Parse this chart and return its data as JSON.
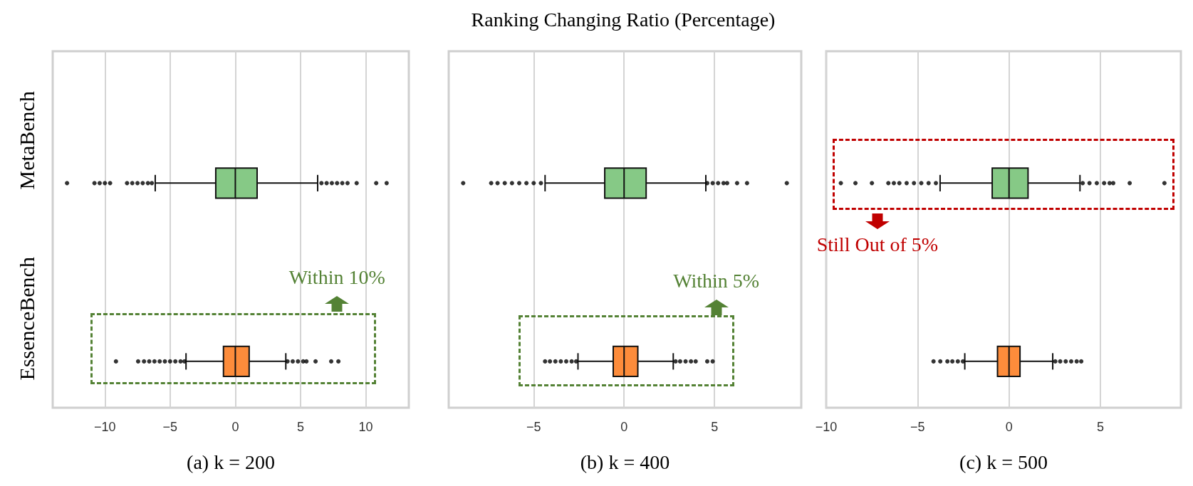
{
  "chart_data": [
    {
      "type": "box",
      "orientation": "horizontal",
      "xlabel": "(a) k = 200",
      "categories": [
        "MetaBench",
        "EssenceBench"
      ],
      "xlim": [
        -14,
        13.3
      ],
      "xticks": [
        -10,
        -5,
        0,
        5,
        10
      ],
      "grid": "x",
      "colors": [
        "#86c986",
        "#fd8c3b"
      ],
      "boxes": [
        {
          "low": -6.14,
          "q1": -1.5,
          "median": 0,
          "q3": 1.67,
          "high": 6.31,
          "outliers": [
            -12.9,
            -10.8,
            -10.4,
            -10.0,
            -9.6,
            -8.3,
            -7.9,
            -7.5,
            -7.1,
            -6.7,
            -6.4,
            6.6,
            7.0,
            7.4,
            7.8,
            8.2,
            8.6,
            9.3,
            10.8,
            11.6
          ]
        },
        {
          "low": -3.78,
          "q1": -0.91,
          "median": 0,
          "q3": 1.06,
          "high": 3.87,
          "outliers": [
            -9.15,
            -7.45,
            -7.0,
            -6.6,
            -6.2,
            -5.8,
            -5.4,
            -5.0,
            -4.6,
            -4.2,
            -3.9,
            4.0,
            4.4,
            4.8,
            5.2,
            5.45,
            6.15,
            7.35,
            7.9
          ]
        }
      ],
      "annotations": [
        "Within 10%"
      ]
    },
    {
      "type": "box",
      "orientation": "horizontal",
      "title": "Ranking Changing Ratio (Percentage)",
      "xlabel": "(b) k = 400",
      "xlim": [
        -9.7,
        9.8
      ],
      "xticks": [
        -5,
        0,
        5
      ],
      "grid": "x",
      "colors": [
        "#86c986",
        "#fd8c3b"
      ],
      "boxes": [
        {
          "low": -4.37,
          "q1": -1.07,
          "median": 0,
          "q3": 1.22,
          "high": 4.52,
          "outliers": [
            -8.9,
            -7.35,
            -7.0,
            -6.6,
            -6.2,
            -5.8,
            -5.4,
            -5.0,
            -4.6,
            4.6,
            4.9,
            5.2,
            5.5,
            5.7,
            6.25,
            6.8,
            9.0
          ]
        },
        {
          "low": -2.55,
          "q1": -0.6,
          "median": 0,
          "q3": 0.76,
          "high": 2.72,
          "outliers": [
            -4.37,
            -4.1,
            -3.8,
            -3.5,
            -3.2,
            -2.9,
            -2.65,
            2.85,
            3.1,
            3.4,
            3.7,
            3.96,
            4.6,
            4.9
          ]
        }
      ],
      "annotations": [
        "Within 5%"
      ]
    },
    {
      "type": "box",
      "orientation": "horizontal",
      "xlabel": "(c) k = 500",
      "xlim": [
        -10,
        9.4
      ],
      "xticks": [
        -10,
        -5,
        0,
        5
      ],
      "grid": "x",
      "colors": [
        "#86c986",
        "#fd8c3b"
      ],
      "boxes": [
        {
          "low": -3.77,
          "q1": -0.92,
          "median": 0,
          "q3": 1.04,
          "high": 3.88,
          "outliers": [
            -9.2,
            -8.4,
            -7.5,
            -6.6,
            -6.3,
            -6.0,
            -5.6,
            -5.2,
            -4.8,
            -4.4,
            -4.0,
            4.03,
            4.4,
            4.8,
            5.2,
            5.5,
            5.7,
            6.6,
            8.5
          ]
        },
        {
          "low": -2.42,
          "q1": -0.63,
          "median": 0,
          "q3": 0.6,
          "high": 2.39,
          "outliers": [
            -4.13,
            -3.76,
            -3.37,
            -3.1,
            -2.8,
            -2.52,
            2.53,
            2.8,
            3.1,
            3.4,
            3.7,
            3.95
          ]
        }
      ],
      "annotations": [
        "Still Out of 5%"
      ]
    }
  ]
}
